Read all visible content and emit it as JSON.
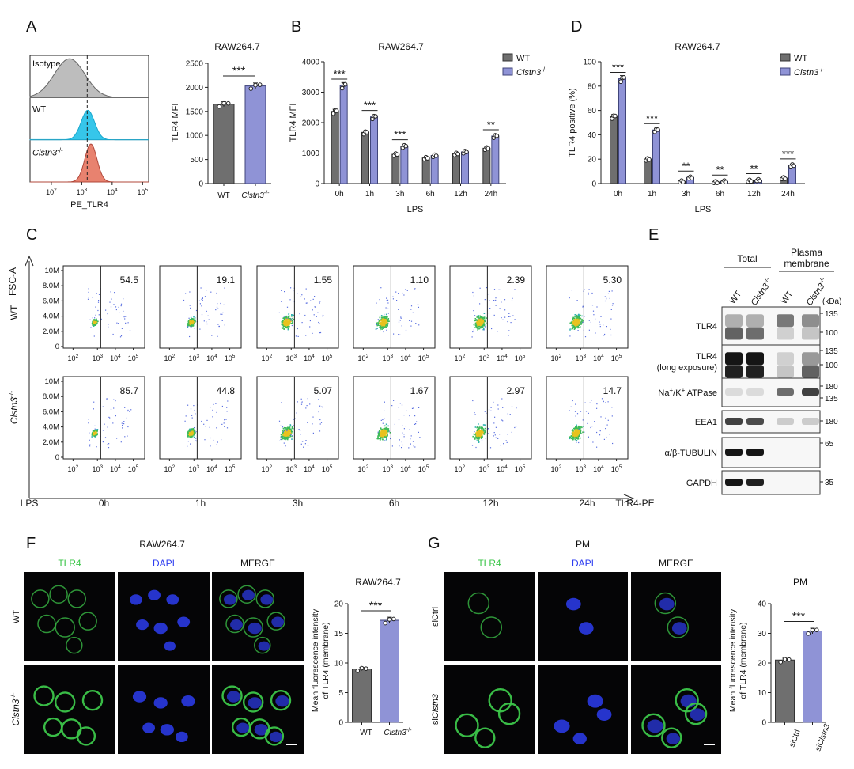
{
  "colors": {
    "wt": "#6f6f6f",
    "ko": "#8f93d6",
    "koEdge": "#40457a",
    "iso": "#bdbdbd",
    "cyan": "#36c6ea",
    "red": "#e8826f",
    "green": "#3cc64a",
    "blue": "#2d3df0"
  },
  "panelA": {
    "letter": "A",
    "hist": {
      "rows": [
        "Isotype",
        "WT",
        "Clstn3-/-"
      ],
      "ko_base": "Clstn3",
      "ko_sup": "-/-",
      "xlabel": "PE_TLR4",
      "ticks": [
        {
          "b": "10",
          "e": "2"
        },
        {
          "b": "10",
          "e": "3"
        },
        {
          "b": "10",
          "e": "4"
        },
        {
          "b": "10",
          "e": "5"
        }
      ]
    },
    "bar": {
      "title": "RAW264.7",
      "ylabel": "TLR4 MFI",
      "sig": "***",
      "chart_data": {
        "type": "bar",
        "categories": [
          "WT",
          "Clstn3-/-"
        ],
        "values": [
          1650,
          2030
        ],
        "title": "RAW264.7",
        "ylabel": "TLR4 MFI",
        "ylim": [
          0,
          2500
        ],
        "yticks": [
          0,
          500,
          1000,
          1500,
          2000,
          2500
        ]
      }
    }
  },
  "panelB": {
    "letter": "B",
    "title": "RAW264.7",
    "ylabel": "TLR4 MFI",
    "xlabel": "LPS",
    "legend": [
      "WT",
      "Clstn3"
    ],
    "legend_sup": "-/-",
    "sigs": [
      "***",
      "***",
      "***",
      "",
      "",
      "**"
    ],
    "chart_data": {
      "type": "bar",
      "categories": [
        "0h",
        "1h",
        "3h",
        "6h",
        "12h",
        "24h"
      ],
      "series": [
        {
          "name": "WT",
          "values": [
            2370,
            1680,
            960,
            840,
            980,
            1160
          ]
        },
        {
          "name": "Clstn3-/-",
          "values": [
            3220,
            2190,
            1230,
            920,
            1040,
            1560
          ]
        }
      ],
      "title": "RAW264.7",
      "xlabel": "LPS",
      "ylabel": "TLR4 MFI",
      "ylim": [
        0,
        4000
      ],
      "yticks": [
        0,
        1000,
        2000,
        3000,
        4000
      ]
    }
  },
  "panelD": {
    "letter": "D",
    "title": "RAW264.7",
    "ylabel": "TLR4 positive (%)",
    "xlabel": "LPS",
    "legend": [
      "WT",
      "Clstn3"
    ],
    "legend_sup": "-/-",
    "sigs": [
      "***",
      "***",
      "**",
      "**",
      "**",
      "***"
    ],
    "chart_data": {
      "type": "bar",
      "categories": [
        "0h",
        "1h",
        "3h",
        "6h",
        "12h",
        "24h"
      ],
      "series": [
        {
          "name": "WT",
          "values": [
            55,
            20,
            1.8,
            1.2,
            2.4,
            4.5
          ]
        },
        {
          "name": "Clstn3-/-",
          "values": [
            86,
            44,
            5.0,
            1.8,
            2.9,
            15
          ]
        }
      ],
      "title": "RAW264.7",
      "xlabel": "LPS",
      "ylabel": "TLR4 positive (%)",
      "ylim": [
        0,
        100
      ],
      "yticks": [
        0,
        20,
        40,
        60,
        80,
        100
      ]
    }
  },
  "panelC": {
    "letter": "C",
    "yaxis": "FSC-A",
    "xaxis": "TLR4-PE",
    "lps_label": "LPS",
    "rows": [
      "WT",
      "Clstn3-/-"
    ],
    "ko_base": "Clstn3",
    "ko_sup": "-/-",
    "times": [
      "0h",
      "1h",
      "3h",
      "6h",
      "12h",
      "24h"
    ],
    "yticks": [
      "10M",
      "8.0M",
      "6.0M",
      "4.0M",
      "2.0M",
      "0"
    ],
    "xticks": [
      {
        "b": "10",
        "e": "2"
      },
      {
        "b": "10",
        "e": "3"
      },
      {
        "b": "10",
        "e": "4"
      },
      {
        "b": "10",
        "e": "5"
      }
    ],
    "percents": [
      [
        "54.5",
        "19.1",
        "1.55",
        "1.10",
        "2.39",
        "5.30"
      ],
      [
        "85.7",
        "44.8",
        "5.07",
        "1.67",
        "2.97",
        "14.7"
      ]
    ]
  },
  "panelE": {
    "letter": "E",
    "group1": "Total",
    "group2a": "Plasma",
    "group2b": "membrane",
    "lanes": [
      "WT",
      "Clstn3-/-",
      "WT",
      "Clstn3-/-"
    ],
    "kda": "(kDa)",
    "blots": [
      {
        "label": "TLR4",
        "markers": [
          "135",
          "100"
        ]
      },
      {
        "label": "TLR4",
        "label2": "(long exposure)",
        "markers": [
          "135",
          "100"
        ]
      },
      {
        "label": "Na+/K+ ATPase",
        "markers": [
          "180",
          "135"
        ]
      },
      {
        "label": "EEA1",
        "markers": [
          "180"
        ]
      },
      {
        "label": "α/β-TUBULIN",
        "markers": [
          "65"
        ]
      },
      {
        "label": "GAPDH",
        "markers": [
          "35"
        ]
      }
    ]
  },
  "panelF": {
    "letter": "F",
    "title": "RAW264.7",
    "channels": [
      "TLR4",
      "DAPI",
      "MERGE"
    ],
    "rows": [
      "WT",
      "Clstn3-/-"
    ],
    "bar": {
      "title": "RAW264.7",
      "ylabel1": "Mean fluorescence intensity",
      "ylabel2": "of TLR4 (membrane)",
      "sig": "***",
      "chart_data": {
        "type": "bar",
        "categories": [
          "WT",
          "Clstn3-/-"
        ],
        "values": [
          9.0,
          17.2
        ],
        "title": "RAW264.7",
        "ylim": [
          0,
          20
        ],
        "yticks": [
          0,
          5,
          10,
          15,
          20
        ]
      }
    }
  },
  "panelG": {
    "letter": "G",
    "title": "PM",
    "channels": [
      "TLR4",
      "DAPI",
      "MERGE"
    ],
    "rows": [
      "siCtrl",
      "siClstn3"
    ],
    "bar": {
      "title": "PM",
      "ylabel1": "Mean fluorescence intensity",
      "ylabel2": "of TLR4 (membrane)",
      "sig": "***",
      "chart_data": {
        "type": "bar",
        "categories": [
          "siCtrl",
          "siClstn3"
        ],
        "values": [
          21,
          30.8
        ],
        "title": "PM",
        "ylim": [
          0,
          40
        ],
        "yticks": [
          0,
          10,
          20,
          30,
          40
        ]
      }
    }
  }
}
